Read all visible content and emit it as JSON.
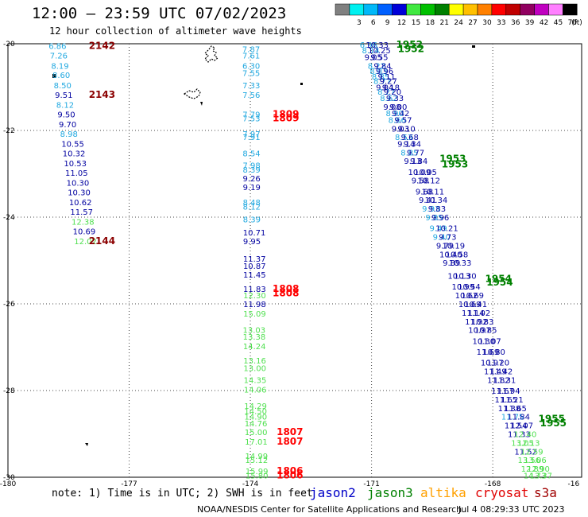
{
  "header": {
    "title": "12:00 — 23:59 UTC 07/02/2023",
    "subtitle": "12 hour collection of altimeter wave heights"
  },
  "legend": {
    "unit_label": "(ft)",
    "bins": [
      {
        "label": "",
        "color": "#808080"
      },
      {
        "label": "3",
        "color": "#00f0f0"
      },
      {
        "label": "6",
        "color": "#00b8f8"
      },
      {
        "label": "9",
        "color": "#0060ff"
      },
      {
        "label": "12",
        "color": "#0000d8"
      },
      {
        "label": "15",
        "color": "#40e840"
      },
      {
        "label": "18",
        "color": "#00c000"
      },
      {
        "label": "21",
        "color": "#008000"
      },
      {
        "label": "24",
        "color": "#ffff00"
      },
      {
        "label": "27",
        "color": "#ffc000"
      },
      {
        "label": "30",
        "color": "#ff8000"
      },
      {
        "label": "33",
        "color": "#ff0000"
      },
      {
        "label": "36",
        "color": "#c00000"
      },
      {
        "label": "39",
        "color": "#900060"
      },
      {
        "label": "42",
        "color": "#c000c0"
      },
      {
        "label": "45",
        "color": "#ff80ff"
      },
      {
        "label": "70",
        "color": "#000000"
      }
    ]
  },
  "axes": {
    "lat_labels": [
      "-20",
      "-22",
      "-24",
      "-26",
      "-28",
      "-30"
    ],
    "lon_labels": [
      "-180",
      "-177",
      "-174",
      "-171",
      "-168",
      "-16"
    ]
  },
  "footer": {
    "note": "note: 1) Time is in UTC; 2) SWH is in feet",
    "credit": "NOAA/NESDIS Center for Satellite Applications and Research",
    "timestamp": "Jul  4 08:29:33 UTC 2023"
  },
  "satellites": [
    {
      "name": "jason2",
      "color": "#0000c8"
    },
    {
      "name": "jason3",
      "color": "#008000"
    },
    {
      "name": "altika",
      "color": "#ffa000"
    },
    {
      "name": "cryosat",
      "color": "#e00000"
    },
    {
      "name": "s3a",
      "color": "#a00000"
    }
  ],
  "colors": {
    "light_blue": "#20a8e0",
    "navy": "#0000a0",
    "light_green": "#50e050",
    "red": "#ff0000",
    "dark_red": "#8b0000",
    "green": "#008000"
  },
  "track_a": [
    {
      "v": "6.86",
      "c": "light_blue",
      "lat": -20.05
    },
    {
      "v": "7.26",
      "c": "light_blue",
      "lat": -20.27
    },
    {
      "v": "8.19",
      "c": "light_blue",
      "lat": -20.5
    },
    {
      "v": "8.60",
      "c": "light_blue",
      "lat": -20.72
    },
    {
      "v": "8.50",
      "c": "light_blue",
      "lat": -20.95
    },
    {
      "v": "9.51",
      "c": "navy",
      "lat": -21.17
    },
    {
      "v": "8.12",
      "c": "light_blue",
      "lat": -21.4
    },
    {
      "v": "9.50",
      "c": "navy",
      "lat": -21.62
    },
    {
      "v": "9.70",
      "c": "navy",
      "lat": -21.85
    },
    {
      "v": "8.98",
      "c": "light_blue",
      "lat": -22.07
    },
    {
      "v": "10.55",
      "c": "navy",
      "lat": -22.3
    },
    {
      "v": "10.32",
      "c": "navy",
      "lat": -22.52
    },
    {
      "v": "10.53",
      "c": "navy",
      "lat": -22.75
    },
    {
      "v": "11.05",
      "c": "navy",
      "lat": -22.97
    },
    {
      "v": "10.30",
      "c": "navy",
      "lat": -23.2
    },
    {
      "v": "10.30",
      "c": "navy",
      "lat": -23.42
    },
    {
      "v": "10.62",
      "c": "navy",
      "lat": -23.65
    },
    {
      "v": "11.57",
      "c": "navy",
      "lat": -23.87
    },
    {
      "v": "12.38",
      "c": "light_green",
      "lat": -24.1
    },
    {
      "v": "10.69",
      "c": "navy",
      "lat": -24.32
    },
    {
      "v": "12.02",
      "c": "light_green",
      "lat": -24.55
    }
  ],
  "track_a_times": [
    {
      "t": "2142",
      "lat": -20.05
    },
    {
      "t": "2143",
      "lat": -21.17
    },
    {
      "t": "2144",
      "lat": -24.55
    }
  ],
  "track_b": [
    {
      "v": "7.87",
      "c": "light_blue",
      "lat": -20.12
    },
    {
      "v": "7.61",
      "c": "light_blue",
      "lat": -20.27
    },
    {
      "v": "6.30",
      "c": "light_blue",
      "lat": -20.5
    },
    {
      "v": "7.55",
      "c": "light_blue",
      "lat": -20.67
    },
    {
      "v": "7.33",
      "c": "light_blue",
      "lat": -20.95
    },
    {
      "v": "7.56",
      "c": "light_blue",
      "lat": -21.17
    },
    {
      "v": "7.79",
      "c": "light_blue",
      "lat": -21.62
    },
    {
      "v": "7.53",
      "c": "light_blue",
      "lat": -21.72
    },
    {
      "v": "7.97",
      "c": "light_blue",
      "lat": -22.07
    },
    {
      "v": "7.91",
      "c": "light_blue",
      "lat": -22.15
    },
    {
      "v": "8.54",
      "c": "light_blue",
      "lat": -22.52
    },
    {
      "v": "7.98",
      "c": "light_blue",
      "lat": -22.8
    },
    {
      "v": "8.39",
      "c": "light_blue",
      "lat": -22.9
    },
    {
      "v": "9.26",
      "c": "navy",
      "lat": -23.1
    },
    {
      "v": "9.19",
      "c": "navy",
      "lat": -23.3
    },
    {
      "v": "8.48",
      "c": "light_blue",
      "lat": -23.65
    },
    {
      "v": "8.12",
      "c": "light_blue",
      "lat": -23.75
    },
    {
      "v": "8.39",
      "c": "light_blue",
      "lat": -24.05
    },
    {
      "v": "10.71",
      "c": "navy",
      "lat": -24.35
    },
    {
      "v": "9.95",
      "c": "navy",
      "lat": -24.55
    },
    {
      "v": "11.37",
      "c": "navy",
      "lat": -24.95
    },
    {
      "v": "10.87",
      "c": "navy",
      "lat": -25.12
    },
    {
      "v": "11.45",
      "c": "navy",
      "lat": -25.32
    },
    {
      "v": "11.83",
      "c": "navy",
      "lat": -25.65
    },
    {
      "v": "12.30",
      "c": "light_green",
      "lat": -25.8
    },
    {
      "v": "11.98",
      "c": "navy",
      "lat": -26.0
    },
    {
      "v": "15.09",
      "c": "light_green",
      "lat": -26.22
    }
  ],
  "track_b_times": [
    {
      "t": "1809",
      "lat": -21.62
    },
    {
      "t": "1809",
      "lat": -21.72
    },
    {
      "t": "1808",
      "lat": -25.65
    },
    {
      "t": "1808",
      "lat": -25.75
    }
  ],
  "track_c": [
    {
      "v": "13.03",
      "c": "light_green",
      "lat": -26.6
    },
    {
      "v": "13.38",
      "c": "light_green",
      "lat": -26.75
    },
    {
      "v": "14.24",
      "c": "light_green",
      "lat": -26.97
    },
    {
      "v": "13.16",
      "c": "light_green",
      "lat": -27.3
    },
    {
      "v": "13.00",
      "c": "light_green",
      "lat": -27.48
    },
    {
      "v": "14.35",
      "c": "light_green",
      "lat": -27.75
    },
    {
      "v": "14.06",
      "c": "light_green",
      "lat": -27.97
    },
    {
      "v": "14.29",
      "c": "light_green",
      "lat": -28.35
    },
    {
      "v": "14.50",
      "c": "light_green",
      "lat": -28.47
    },
    {
      "v": "14.90",
      "c": "light_green",
      "lat": -28.6
    },
    {
      "v": "14.76",
      "c": "light_green",
      "lat": -28.75
    },
    {
      "v": "15.00",
      "c": "light_green",
      "lat": -28.95
    },
    {
      "v": "17.01",
      "c": "light_green",
      "lat": -29.17
    },
    {
      "v": "14.99",
      "c": "light_green",
      "lat": -29.5
    },
    {
      "v": "15.12",
      "c": "light_green",
      "lat": -29.6
    },
    {
      "v": "15.99",
      "c": "light_green",
      "lat": -29.85
    },
    {
      "v": "15.80",
      "c": "light_green",
      "lat": -29.95
    }
  ],
  "track_c_times": [
    {
      "t": "1807",
      "lat": -28.95
    },
    {
      "t": "1807",
      "lat": -29.17
    },
    {
      "t": "1806",
      "lat": -29.85
    },
    {
      "t": "1806",
      "lat": -29.95
    }
  ],
  "track_d": [
    {
      "v": "6.96",
      "c": "light_blue",
      "lat": -20.02
    },
    {
      "v": "8.14",
      "c": "light_blue",
      "lat": -20.15
    },
    {
      "v": "9.05",
      "c": "navy",
      "lat": -20.3
    },
    {
      "v": "8.22",
      "c": "light_blue",
      "lat": -20.5
    },
    {
      "v": "8.03",
      "c": "light_blue",
      "lat": -20.62
    },
    {
      "v": "8.85",
      "c": "light_blue",
      "lat": -20.75
    },
    {
      "v": "8.77",
      "c": "light_blue",
      "lat": -20.85
    },
    {
      "v": "9.04",
      "c": "navy",
      "lat": -21.0
    },
    {
      "v": "8.27",
      "c": "light_blue",
      "lat": -21.1
    },
    {
      "v": "8.62",
      "c": "light_blue",
      "lat": -21.25
    },
    {
      "v": "9.08",
      "c": "navy",
      "lat": -21.45
    },
    {
      "v": "8.90",
      "c": "light_blue",
      "lat": -21.6
    },
    {
      "v": "8.66",
      "c": "light_blue",
      "lat": -21.75
    },
    {
      "v": "9.03",
      "c": "navy",
      "lat": -21.95
    },
    {
      "v": "8.53",
      "c": "light_blue",
      "lat": -22.15
    },
    {
      "v": "9.14",
      "c": "navy",
      "lat": -22.3
    },
    {
      "v": "8.85",
      "c": "light_blue",
      "lat": -22.5
    },
    {
      "v": "9.13",
      "c": "navy",
      "lat": -22.7
    },
    {
      "v": "10.09",
      "c": "navy",
      "lat": -22.95
    },
    {
      "v": "9.58",
      "c": "navy",
      "lat": -23.15
    },
    {
      "v": "9.68",
      "c": "navy",
      "lat": -23.4
    },
    {
      "v": "9.41",
      "c": "navy",
      "lat": -23.6
    },
    {
      "v": "9.93",
      "c": "light_blue",
      "lat": -23.8
    },
    {
      "v": "9.85",
      "c": "light_blue",
      "lat": -24.0
    },
    {
      "v": "9.49",
      "c": "light_blue",
      "lat": -24.25
    },
    {
      "v": "9.40",
      "c": "light_blue",
      "lat": -24.45
    },
    {
      "v": "9.79",
      "c": "navy",
      "lat": -24.65
    },
    {
      "v": "10.40",
      "c": "navy",
      "lat": -24.85
    },
    {
      "v": "9.89",
      "c": "navy",
      "lat": -25.05
    },
    {
      "v": "10.13",
      "c": "navy",
      "lat": -25.35
    },
    {
      "v": "10.99",
      "c": "navy",
      "lat": -25.6
    },
    {
      "v": "10.62",
      "c": "navy",
      "lat": -25.8
    },
    {
      "v": "10.69",
      "c": "navy",
      "lat": -26.0
    },
    {
      "v": "11.14",
      "c": "navy",
      "lat": -26.2
    },
    {
      "v": "11.92",
      "c": "navy",
      "lat": -26.4
    },
    {
      "v": "10.97",
      "c": "navy",
      "lat": -26.6
    },
    {
      "v": "10.30",
      "c": "navy",
      "lat": -26.85
    },
    {
      "v": "11.69",
      "c": "navy",
      "lat": -27.1
    },
    {
      "v": "10.97",
      "c": "navy",
      "lat": -27.35
    },
    {
      "v": "11.49",
      "c": "navy",
      "lat": -27.55
    },
    {
      "v": "11.82",
      "c": "navy",
      "lat": -27.75
    },
    {
      "v": "11.67",
      "c": "navy",
      "lat": -28.0
    },
    {
      "v": "11.65",
      "c": "navy",
      "lat": -28.2
    },
    {
      "v": "11.38",
      "c": "navy",
      "lat": -28.4
    },
    {
      "v": "11.75",
      "c": "light_blue",
      "lat": -28.6
    },
    {
      "v": "11.54",
      "c": "navy",
      "lat": -28.8
    },
    {
      "v": "11.33",
      "c": "navy",
      "lat": -29.0
    },
    {
      "v": "13.05",
      "c": "light_green",
      "lat": -29.2
    },
    {
      "v": "11.52",
      "c": "navy",
      "lat": -29.4
    },
    {
      "v": "13.56",
      "c": "light_green",
      "lat": -29.6
    },
    {
      "v": "12.89",
      "c": "light_green",
      "lat": -29.8
    },
    {
      "v": "14.73",
      "c": "light_green",
      "lat": -29.95
    }
  ],
  "track_e": [
    {
      "v": "10.33",
      "c": "navy",
      "lat": -20.02
    },
    {
      "v": "10.25",
      "c": "navy",
      "lat": -20.15
    },
    {
      "v": "9.55",
      "c": "navy",
      "lat": -20.3
    },
    {
      "v": "9.84",
      "c": "navy",
      "lat": -20.5
    },
    {
      "v": "9.96",
      "c": "navy",
      "lat": -20.62
    },
    {
      "v": "9.11",
      "c": "navy",
      "lat": -20.75
    },
    {
      "v": "9.27",
      "c": "navy",
      "lat": -20.85
    },
    {
      "v": "9.18",
      "c": "navy",
      "lat": -21.0
    },
    {
      "v": "9.20",
      "c": "navy",
      "lat": -21.1
    },
    {
      "v": "9.33",
      "c": "navy",
      "lat": -21.25
    },
    {
      "v": "9.00",
      "c": "navy",
      "lat": -21.45
    },
    {
      "v": "9.42",
      "c": "navy",
      "lat": -21.6
    },
    {
      "v": "9.57",
      "c": "navy",
      "lat": -21.75
    },
    {
      "v": "9.10",
      "c": "navy",
      "lat": -21.95
    },
    {
      "v": "9.68",
      "c": "navy",
      "lat": -22.15
    },
    {
      "v": "9.34",
      "c": "navy",
      "lat": -22.3
    },
    {
      "v": "9.77",
      "c": "navy",
      "lat": -22.5
    },
    {
      "v": "9.84",
      "c": "navy",
      "lat": -22.7
    },
    {
      "v": "10.05",
      "c": "navy",
      "lat": -22.95
    },
    {
      "v": "10.12",
      "c": "navy",
      "lat": -23.15
    },
    {
      "v": "10.11",
      "c": "navy",
      "lat": -23.4
    },
    {
      "v": "10.34",
      "c": "navy",
      "lat": -23.6
    },
    {
      "v": "9.83",
      "c": "navy",
      "lat": -23.8
    },
    {
      "v": "9.96",
      "c": "navy",
      "lat": -24.0
    },
    {
      "v": "10.21",
      "c": "navy",
      "lat": -24.25
    },
    {
      "v": "9.73",
      "c": "navy",
      "lat": -24.45
    },
    {
      "v": "10.19",
      "c": "navy",
      "lat": -24.65
    },
    {
      "v": "10.58",
      "c": "navy",
      "lat": -24.85
    },
    {
      "v": "10.33",
      "c": "navy",
      "lat": -25.05
    },
    {
      "v": "10.30",
      "c": "navy",
      "lat": -25.35
    },
    {
      "v": "10.54",
      "c": "navy",
      "lat": -25.6
    },
    {
      "v": "10.69",
      "c": "navy",
      "lat": -25.8
    },
    {
      "v": "10.41",
      "c": "navy",
      "lat": -26.0
    },
    {
      "v": "11.02",
      "c": "navy",
      "lat": -26.2
    },
    {
      "v": "10.83",
      "c": "navy",
      "lat": -26.4
    },
    {
      "v": "10.85",
      "c": "navy",
      "lat": -26.6
    },
    {
      "v": "11.07",
      "c": "navy",
      "lat": -26.85
    },
    {
      "v": "10.80",
      "c": "navy",
      "lat": -27.1
    },
    {
      "v": "11.20",
      "c": "navy",
      "lat": -27.35
    },
    {
      "v": "11.42",
      "c": "navy",
      "lat": -27.55
    },
    {
      "v": "11.31",
      "c": "navy",
      "lat": -27.75
    },
    {
      "v": "11.94",
      "c": "navy",
      "lat": -28.0
    },
    {
      "v": "11.21",
      "c": "navy",
      "lat": -28.2
    },
    {
      "v": "11.65",
      "c": "navy",
      "lat": -28.4
    },
    {
      "v": "11.84",
      "c": "navy",
      "lat": -28.6
    },
    {
      "v": "12.07",
      "c": "navy",
      "lat": -28.8
    },
    {
      "v": "12.40",
      "c": "light_green",
      "lat": -29.0
    },
    {
      "v": "12.13",
      "c": "light_green",
      "lat": -29.2
    },
    {
      "v": "12.59",
      "c": "light_green",
      "lat": -29.4
    },
    {
      "v": "13.06",
      "c": "light_green",
      "lat": -29.6
    },
    {
      "v": "12.90",
      "c": "light_green",
      "lat": -29.8
    },
    {
      "v": "13.37",
      "c": "light_green",
      "lat": -29.95
    }
  ],
  "track_de_times": [
    {
      "t": "1952",
      "lat": -20.02
    },
    {
      "t": "1952",
      "lat": -20.12
    },
    {
      "t": "1953",
      "lat": -22.65
    },
    {
      "t": "1953",
      "lat": -22.78
    },
    {
      "t": "1954",
      "lat": -25.42
    },
    {
      "t": "1954",
      "lat": -25.5
    },
    {
      "t": "1955",
      "lat": -28.65
    },
    {
      "t": "1955",
      "lat": -28.75
    }
  ]
}
